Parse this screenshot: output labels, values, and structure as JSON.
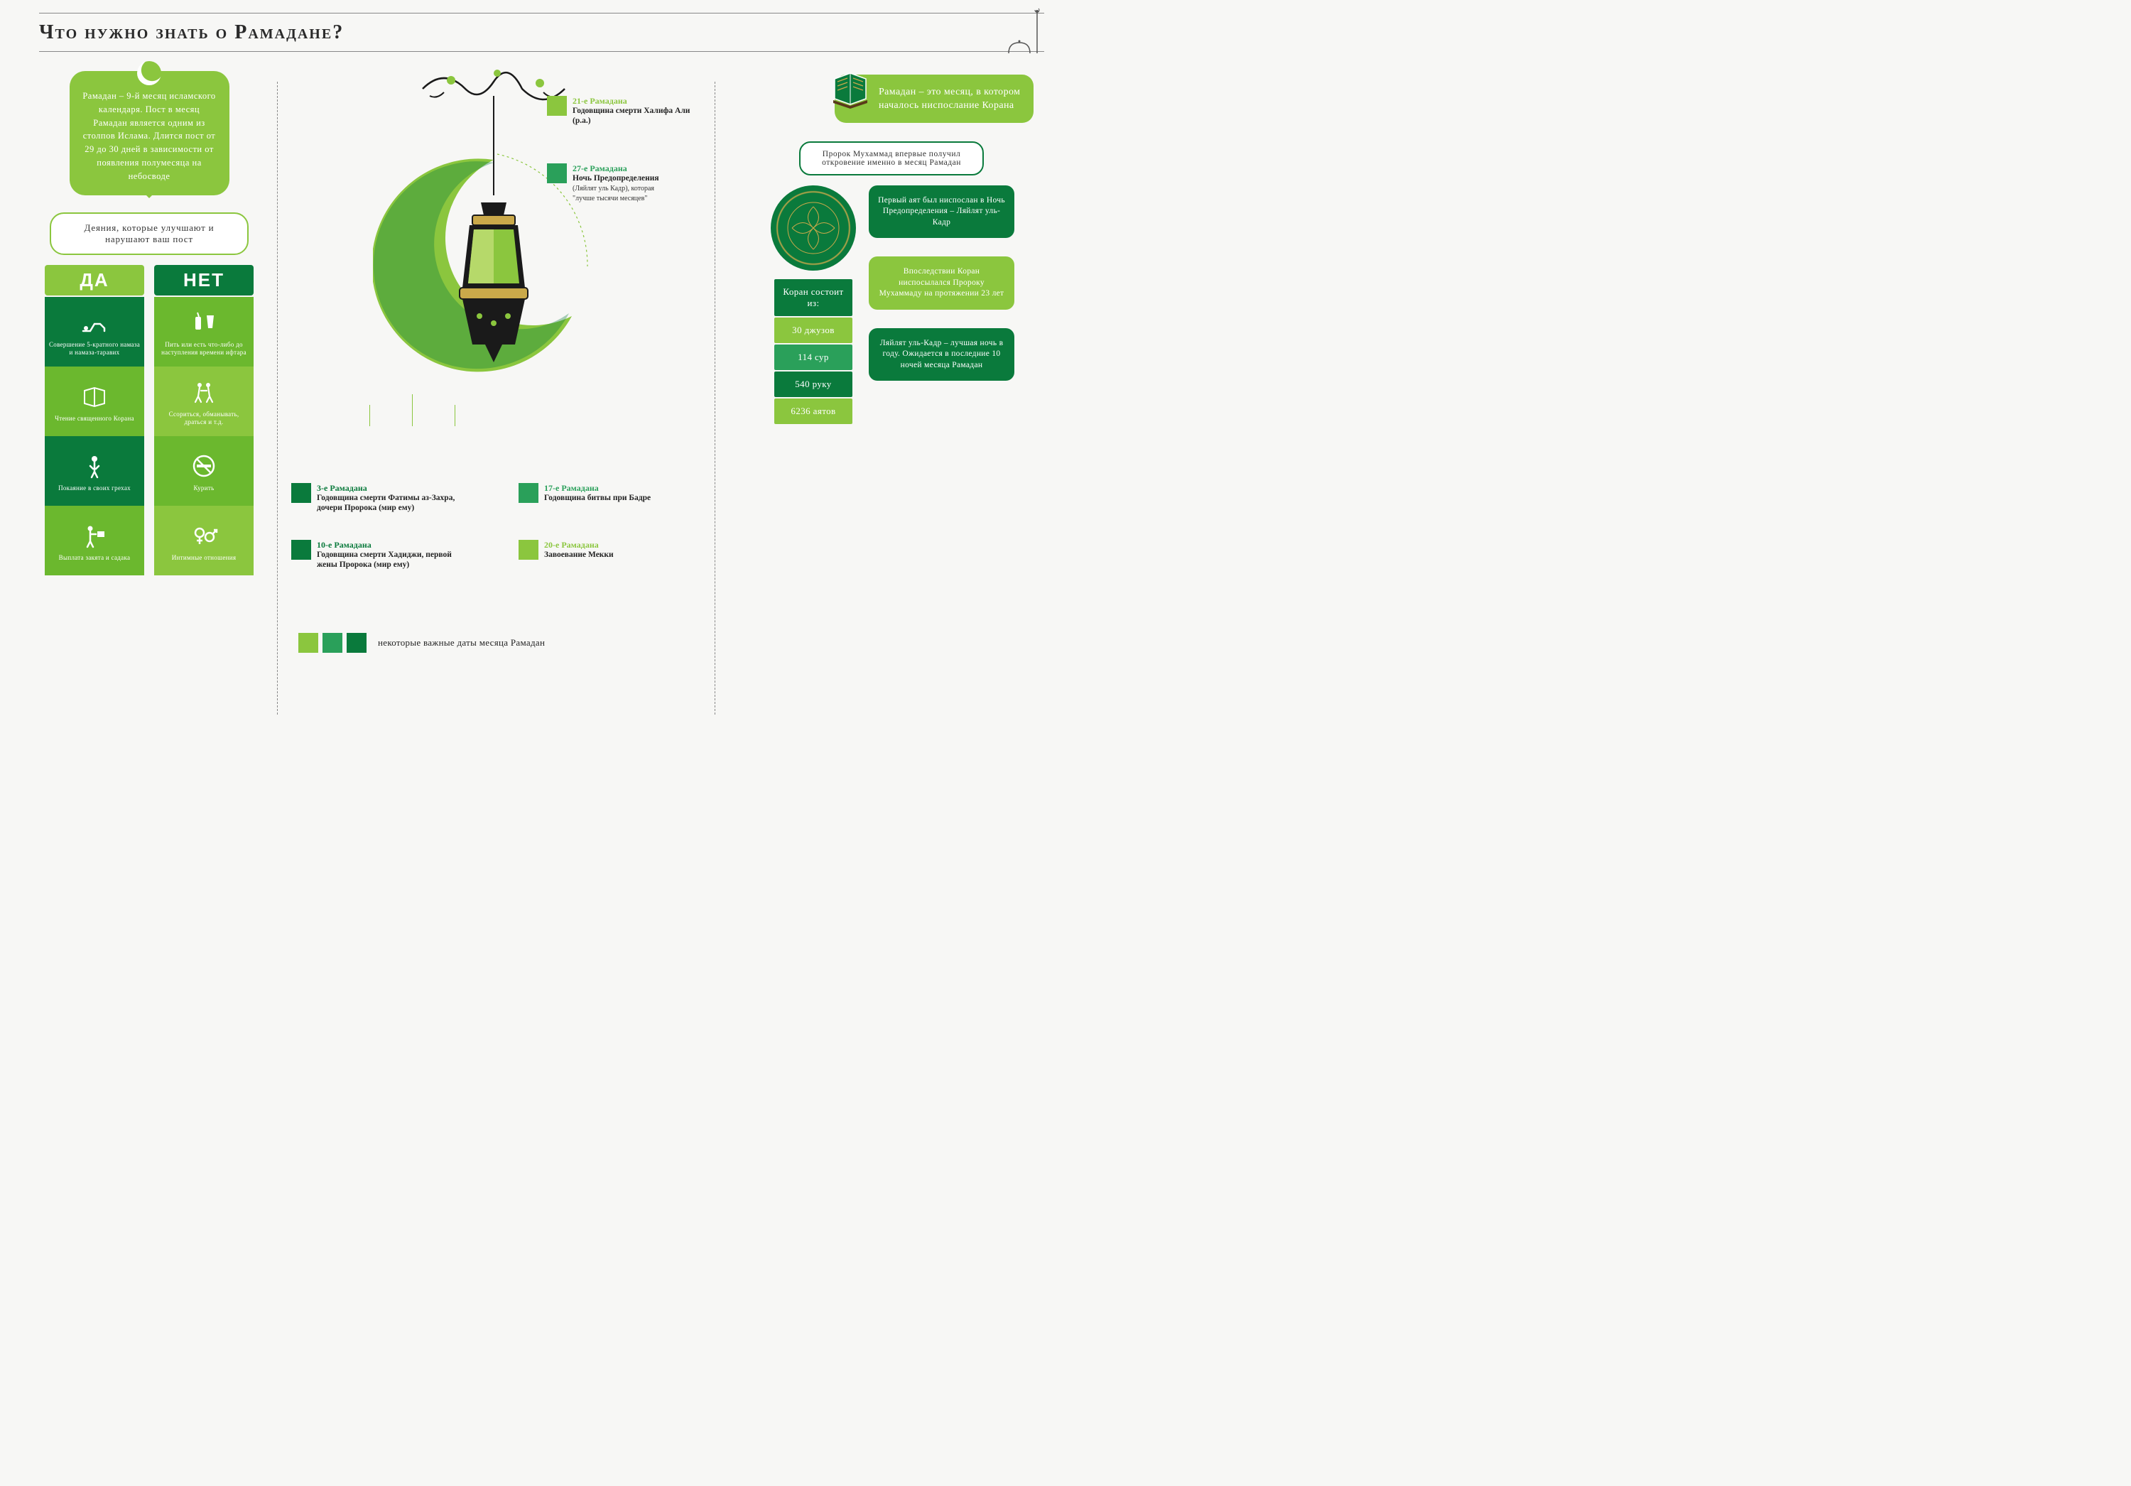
{
  "colors": {
    "light_green": "#8bc63e",
    "mid_green": "#2aa05a",
    "dark_green": "#0a7a3c",
    "gold": "#caa94a",
    "bg": "#f7f7f5",
    "text": "#2a2a2a",
    "rule": "#888888"
  },
  "title": "Что нужно знать о Рамадане?",
  "left": {
    "intro": "Рамадан – 9-й месяц исламского календаря. Пост в месяц Рамадан является одним из столпов Ислама. Длится пост от 29 до 30 дней в зависимости от появления полумесяца на небосводе",
    "deeds_label": "Деяния, которые улучшают и нарушают ваш пост",
    "yes_header": "ДА",
    "no_header": "НЕТ",
    "yes_items": [
      {
        "icon": "prostration-icon",
        "label": "Совершение 5-кратного намаза и намаза-таравих"
      },
      {
        "icon": "quran-read-icon",
        "label": "Чтение священного Корана"
      },
      {
        "icon": "repent-icon",
        "label": "Покаяние в своих грехах"
      },
      {
        "icon": "charity-icon",
        "label": "Выплата закята и садака"
      }
    ],
    "no_items": [
      {
        "icon": "eat-drink-icon",
        "label": "Пить или есть что-либо до наступления времени ифтара"
      },
      {
        "icon": "fight-icon",
        "label": "Ссориться, обманывать, драться и т.д."
      },
      {
        "icon": "no-smoke-icon",
        "label": "Курить"
      },
      {
        "icon": "gender-icon",
        "label": "Интимные отношения"
      }
    ]
  },
  "center": {
    "dates": [
      {
        "color_idx": 0,
        "pos": "tr1",
        "title": "21-е Рамадана",
        "body": "Годовщина смерти Халифа Али (р.а.)"
      },
      {
        "color_idx": 1,
        "pos": "tr2",
        "title": "27-е Рамадана",
        "body": "Ночь Предопределения (Ляйлят уль Кадр), которая \"лучше тысячи месяцев\""
      },
      {
        "color_idx": 2,
        "pos": "bl1",
        "title": "3-е Рамадана",
        "body": "Годовщина смерти Фатимы аз-Захра, дочери Пророка (мир ему)"
      },
      {
        "color_idx": 2,
        "pos": "bl2",
        "title": "10-е Рамадана",
        "body": "Годовщина смерти Хадиджи, первой жены Пророка (мир ему)"
      },
      {
        "color_idx": 1,
        "pos": "br1",
        "title": "17-е Рамадана",
        "body": "Годовщина битвы при Бадре"
      },
      {
        "color_idx": 0,
        "pos": "br2",
        "title": "20-е Рамадана",
        "body": "Завоевание Мекки"
      }
    ],
    "legend": "некоторые важные даты месяца Рамадан",
    "legend_colors": [
      "#8bc63e",
      "#2aa05a",
      "#0a7a3c"
    ]
  },
  "right": {
    "bubble": "Рамадан – это месяц, в котором началось ниспослание Корана",
    "prophet": "Пророк Мухаммад впервые получил откровение именно в месяц Рамадан",
    "stats_title": "Коран состоит из:",
    "stats": [
      {
        "text": "30 джузов",
        "style": "light"
      },
      {
        "text": "114 сур",
        "style": "mid"
      },
      {
        "text": "540 руку",
        "style": "dark"
      },
      {
        "text": "6236 аятов",
        "style": "light"
      }
    ],
    "facts": [
      {
        "style": "dark",
        "text": "Первый аят был ниспослан в Ночь Предопределения – Ляйлят уль-Кадр"
      },
      {
        "style": "light",
        "text": "Впоследствии Коран ниспосылался Пророку Мухаммаду на протяжении 23 лет"
      },
      {
        "style": "dark",
        "text": "Ляйлят уль-Кадр – лучшая ночь в году. Ожидается в последние 10 ночей месяца Рамадан"
      }
    ]
  }
}
